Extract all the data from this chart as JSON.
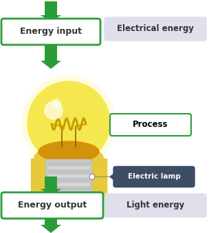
{
  "bg_color": "#ffffff",
  "green_color": "#2a9d3a",
  "label_bg": "#e0e0ec",
  "process_border": "#2a9d3a",
  "electric_lamp_bg": "#3d4d63",
  "electric_lamp_text": "#ffffff",
  "box_border": "#2a9d3a",
  "energy_input_text": "Energy input",
  "energy_output_text": "Energy output",
  "electrical_energy_text": "Electrical energy",
  "process_text": "Process",
  "electric_lamp_label": "Electric lamp",
  "light_energy_text": "Light energy",
  "bulb_yellow": "#f5e84e",
  "bulb_yellow_dark": "#e8c93a",
  "bulb_glow": "#fffce0",
  "bulb_amber": "#d4920a",
  "socket_color": "#c8c8c8",
  "socket_dark": "#aaaaaa",
  "filament_color": "#8b5e10",
  "coil_color": "#c8a000",
  "text_color": "#333333"
}
